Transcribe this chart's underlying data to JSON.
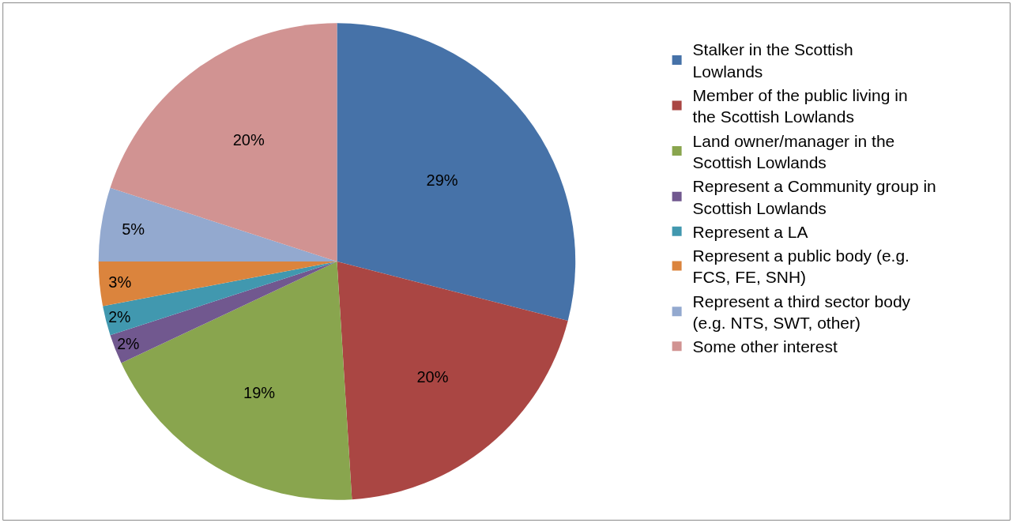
{
  "chart_data": {
    "type": "pie",
    "categories": [
      "Stalker in the Scottish Lowlands",
      "Member of the public living in the Scottish Lowlands",
      "Land owner/manager in the Scottish Lowlands",
      "Represent a Community group in Scottish Lowlands",
      "Represent a LA",
      "Represent a public body (e.g. FCS, FE, SNH)",
      "Represent a third sector body (e.g. NTS, SWT, other)",
      "Some other interest"
    ],
    "values": [
      29,
      20,
      19,
      2,
      2,
      3,
      5,
      20
    ],
    "value_labels": [
      "29%",
      "20%",
      "19%",
      "2%",
      "2%",
      "3%",
      "5%",
      "20%"
    ],
    "colors": [
      "#4672a8",
      "#aa4643",
      "#89a54e",
      "#71588f",
      "#4198af",
      "#db843d",
      "#93a9cf",
      "#d19392"
    ],
    "legend": "right"
  }
}
